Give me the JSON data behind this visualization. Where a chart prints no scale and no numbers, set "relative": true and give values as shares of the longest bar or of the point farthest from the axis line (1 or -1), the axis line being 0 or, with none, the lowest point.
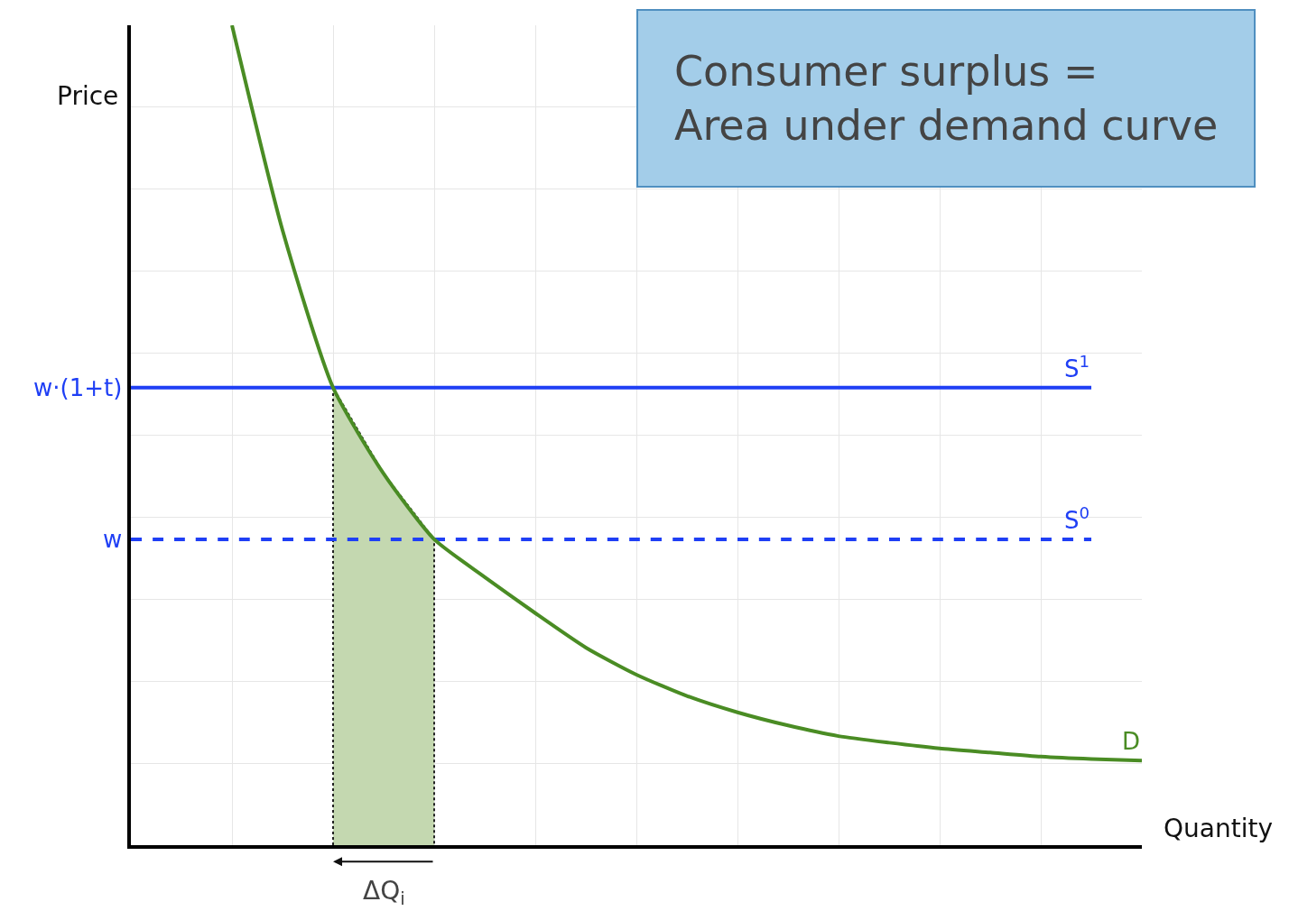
{
  "chart_data": {
    "type": "line",
    "relative": true,
    "xlabel": "Quantity",
    "ylabel": "Price",
    "categories": [
      null,
      null,
      null,
      null,
      null,
      null,
      null,
      null,
      null,
      null,
      null,
      null,
      null,
      null,
      null,
      null,
      null,
      null,
      null,
      null,
      null
    ],
    "series": [
      {
        "type": "area",
        "color": "#c4d8b0",
        "values": [
          null,
          null,
          null,
          null,
          0.558,
          0.453,
          0.373,
          null,
          null,
          null,
          null,
          null,
          null,
          null,
          null,
          null,
          null,
          null,
          null,
          null,
          null
        ]
      },
      {
        "name": "S$^{1}$",
        "color": "#1f3ff5",
        "line_style": "solid",
        "values": [
          0.558,
          0.558,
          0.558,
          0.558,
          0.558,
          0.558,
          0.558,
          0.558,
          0.558,
          0.558,
          0.558,
          0.558,
          0.558,
          0.558,
          0.558,
          0.558,
          0.558,
          0.558,
          0.558,
          0.558,
          null
        ]
      },
      {
        "name": "S$^{0}$",
        "color": "#1f3ff5",
        "line_style": "dashed",
        "values": [
          0.373,
          0.373,
          0.373,
          0.373,
          0.373,
          0.373,
          0.373,
          0.373,
          0.373,
          0.373,
          0.373,
          0.373,
          0.373,
          0.373,
          0.373,
          0.373,
          0.373,
          0.373,
          0.373,
          0.373,
          null
        ]
      },
      {
        "name": "D",
        "color": "#4a8c24",
        "line_style": "solid",
        "values": [
          null,
          null,
          1,
          0.75,
          0.558,
          0.453,
          0.373,
          0.327,
          0.283,
          0.241,
          0.208,
          0.182,
          0.162,
          0.146,
          0.133,
          0.125,
          0.118,
          0.113,
          0.108,
          0.105,
          0.103
        ]
      }
    ],
    "annotations": [
      "w·(1+t)",
      "w",
      "ΔQ$_{i}$",
      "Consumer surplus =\nArea under demand curve"
    ],
    "grid": true,
    "marker": "none"
  }
}
